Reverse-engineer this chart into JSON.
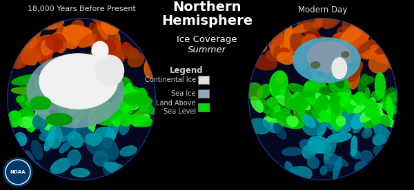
{
  "background_color": "#000000",
  "title_main": "Northern\nHemisphere",
  "title_sub1": "Ice Coverage",
  "title_sub2": "Summer",
  "label_left": "18,000 Years Before Present",
  "label_right": "Modern Day",
  "legend_title": "Legend",
  "legend_items": [
    {
      "label": "Continental Ice",
      "color": "#e0e0e0"
    },
    {
      "label": "Sea Ice",
      "color": "#8baabb"
    },
    {
      "label": "Land Above\nSea Level",
      "color": "#00dd00"
    }
  ],
  "title_color": "#ffffff",
  "label_color": "#dddddd",
  "legend_color": "#cccccc",
  "figsize": [
    6.0,
    2.76
  ],
  "dpi": 100
}
